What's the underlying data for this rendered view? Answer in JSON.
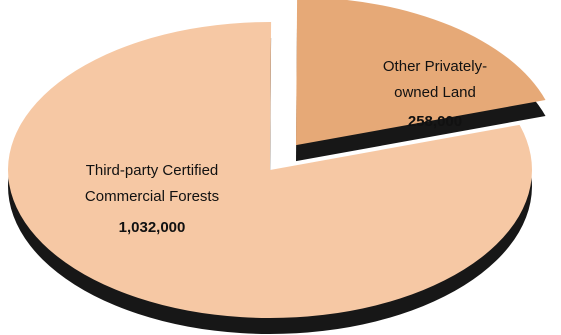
{
  "chart_data": {
    "type": "pie",
    "style": "3d-exploded",
    "slices": [
      {
        "label_lines": [
          "Third-party Certified",
          "Commercial Forests"
        ],
        "value": 1032000,
        "value_label": "1,032,000",
        "color": "#F6C8A4",
        "edge_color": "#171717",
        "exploded": false
      },
      {
        "label_lines": [
          "Other Privately-",
          "owned Land"
        ],
        "value": 258000,
        "value_label": "258,000",
        "color": "#E6A977",
        "edge_color": "#171717",
        "exploded": true
      }
    ],
    "legend": "none"
  }
}
